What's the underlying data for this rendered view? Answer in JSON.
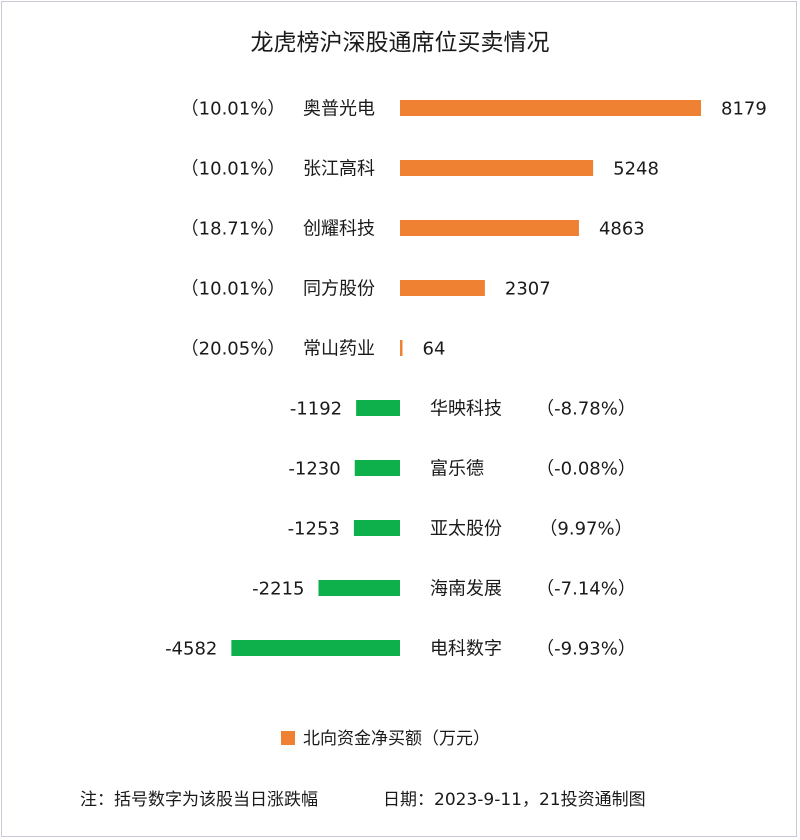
{
  "chart_data": {
    "type": "bar",
    "orientation": "horizontal-diverging",
    "title": "龙虎榜沪深股通席位买卖情况",
    "series": [
      {
        "name": "北向资金净买额（万元）",
        "color": "#ef8232",
        "negative_color": "#0db04b"
      }
    ],
    "categories": [
      "奥普光电",
      "张江高科",
      "创耀科技",
      "同方股份",
      "常山药业",
      "华映科技",
      "富乐德",
      "亚太股份",
      "海南发展",
      "电科数字"
    ],
    "values": [
      8179,
      5248,
      4863,
      2307,
      64,
      -1192,
      -1230,
      -1253,
      -2215,
      -4582
    ],
    "change_labels": [
      "（10.01%）",
      "（10.01%）",
      "（18.71%）",
      "（10.01%）",
      "（20.05%）",
      "（-8.78%）",
      "（-0.08%）",
      "（9.97%）",
      "（-7.14%）",
      "（-9.93%）"
    ],
    "legend": {
      "position": "bottom",
      "label": "北向资金净买额（万元）"
    },
    "grid": false,
    "footnote": {
      "note": "注：括号数字为该股当日涨跌幅",
      "date": "日期：2023-9-11，21投资通制图"
    }
  }
}
